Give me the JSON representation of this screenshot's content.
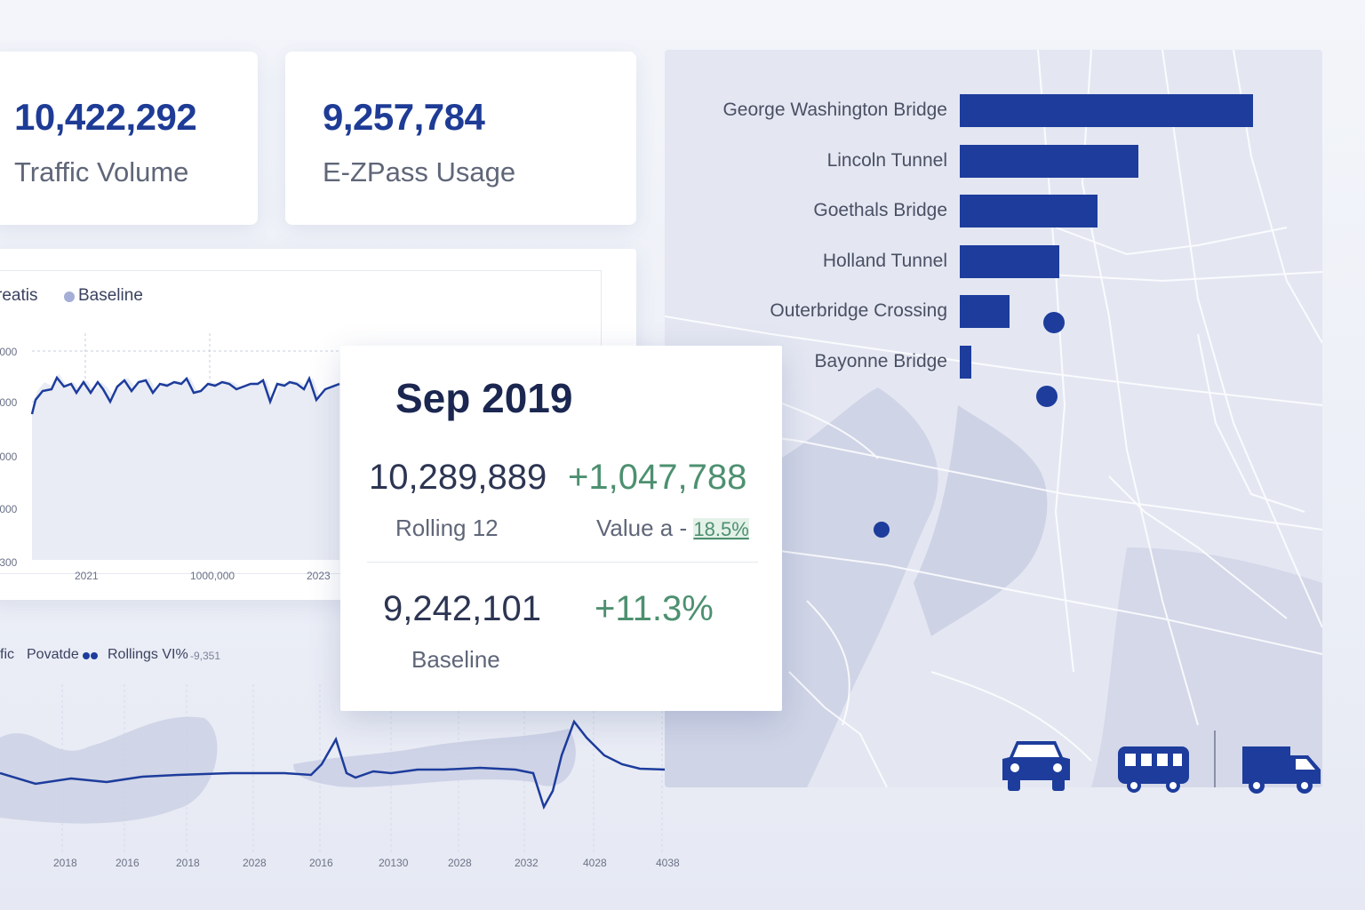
{
  "kpis": [
    {
      "value": "10,422,292",
      "label": "Traffic Volume"
    },
    {
      "value": "9,257,784",
      "label": "E-ZPass Usage"
    }
  ],
  "bar_chart": {
    "bars": [
      {
        "name": "George Washington Bridge",
        "value": 100
      },
      {
        "name": "Lincoln Tunnel",
        "value": 61
      },
      {
        "name": "Goethals Bridge",
        "value": 47
      },
      {
        "name": "Holland Tunnel",
        "value": 34
      },
      {
        "name": "Outerbridge Crossing",
        "value": 17
      },
      {
        "name": "Bayonne Bridge",
        "value": 4
      }
    ]
  },
  "top_chart": {
    "legend": [
      "reatis",
      "Baseline"
    ],
    "y_ticks": [
      ",000",
      ",000",
      ",000",
      ",000",
      ",300"
    ],
    "x_ticks": [
      "2021",
      "1000,000",
      "2023"
    ]
  },
  "bottom_chart": {
    "legend": [
      "fic",
      "Povatde",
      "Rollings VI%",
      "-9,351"
    ],
    "x_ticks": [
      "2018",
      "2016",
      "2018",
      "2028",
      "2016",
      "20130",
      "2028",
      "2032",
      "4028",
      "4038"
    ]
  },
  "tooltip": {
    "title": "Sep 2019",
    "rolling_value": "10,289,889",
    "rolling_change": "+1,047,788",
    "rolling_label": "Rolling 12",
    "value_label": "Value a -",
    "value_pct": "18.5%",
    "baseline_value": "9,242,101",
    "baseline_change": "+11.3%",
    "baseline_label": "Baseline"
  },
  "vehicle_icons": [
    "car-icon",
    "bus-icon",
    "truck-icon"
  ],
  "colors": {
    "accent": "#1d3c9c",
    "positive": "#4d9070",
    "muted": "#5f6678"
  }
}
